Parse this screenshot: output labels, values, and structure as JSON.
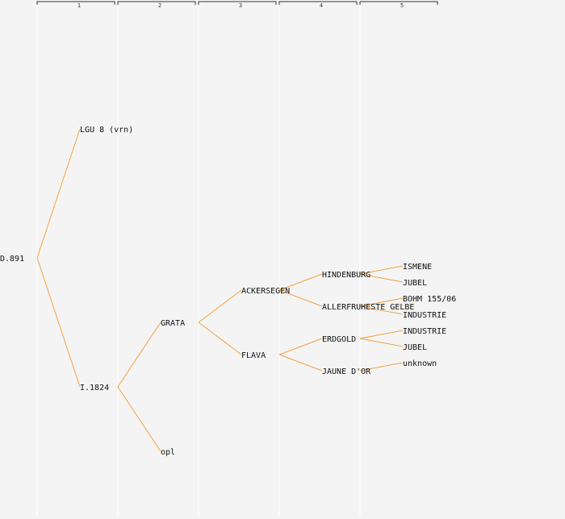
{
  "colors": {
    "background": "#f4f4f4",
    "edge": "#f5a040",
    "column_rule": "#ffffff",
    "bracket": "#333333",
    "text": "#111111"
  },
  "generations": [
    "1",
    "2",
    "3",
    "4",
    "5"
  ],
  "pedigree": {
    "label": "D.891",
    "parents": [
      {
        "label": "LGU 8 (vrn)",
        "parents": []
      },
      {
        "label": "I.1824",
        "parents": [
          {
            "label": "GRATA",
            "parents": [
              {
                "label": "ACKERSEGEN",
                "parents": [
                  {
                    "label": "HINDENBURG",
                    "parents": [
                      {
                        "label": "ISMENE",
                        "parents": []
                      },
                      {
                        "label": "JUBEL",
                        "parents": []
                      }
                    ]
                  },
                  {
                    "label": "ALLERFRUHESTE GELBE",
                    "parents": [
                      {
                        "label": "BOHM 155/06",
                        "parents": []
                      },
                      {
                        "label": "INDUSTRIE",
                        "parents": []
                      }
                    ]
                  }
                ]
              },
              {
                "label": "FLAVA",
                "parents": [
                  {
                    "label": "ERDGOLD",
                    "parents": [
                      {
                        "label": "INDUSTRIE",
                        "parents": []
                      },
                      {
                        "label": "JUBEL",
                        "parents": []
                      }
                    ]
                  },
                  {
                    "label": "JAUNE D'OR",
                    "parents": [
                      {
                        "label": "unknown",
                        "parents": []
                      }
                    ]
                  }
                ]
              }
            ]
          },
          {
            "label": "opl",
            "parents": []
          }
        ]
      }
    ]
  }
}
